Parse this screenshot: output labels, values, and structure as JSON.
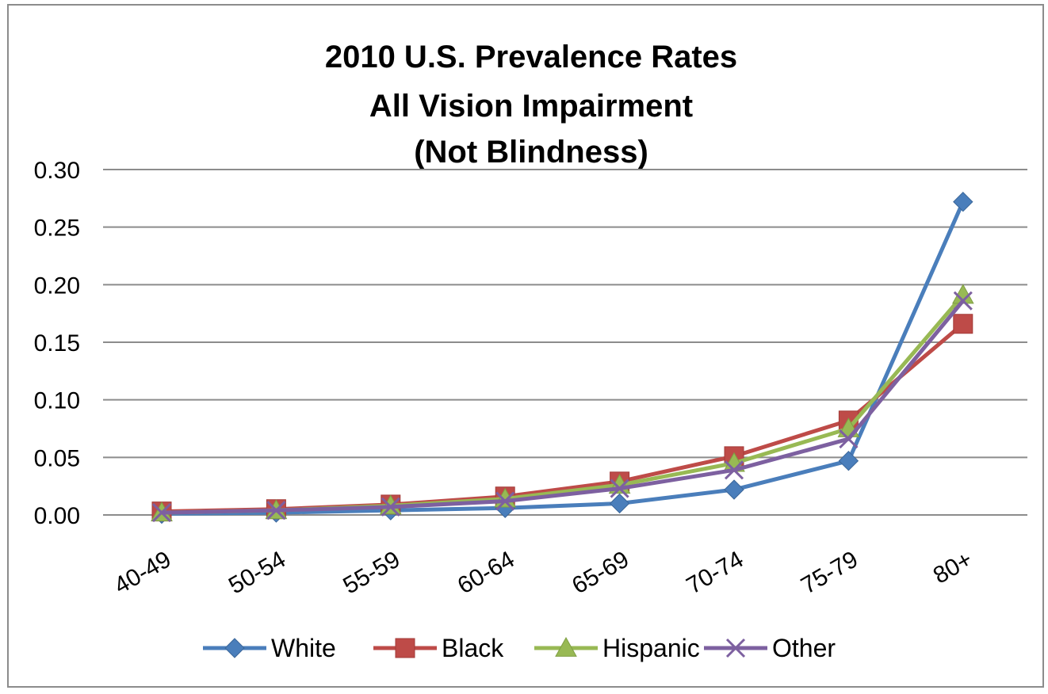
{
  "chart_data": {
    "type": "line",
    "title": [
      "2010 U.S. Prevalence Rates",
      "All Vision Impairment",
      "(Not Blindness)"
    ],
    "xlabel": "",
    "ylabel": "",
    "categories": [
      "40-49",
      "50-54",
      "55-59",
      "60-64",
      "65-69",
      "70-74",
      "75-79",
      "80+"
    ],
    "ylim": [
      0,
      0.3
    ],
    "yticks": [
      "0.00",
      "0.05",
      "0.10",
      "0.15",
      "0.20",
      "0.25",
      "0.30"
    ],
    "grid": true,
    "legend_position": "bottom",
    "series": [
      {
        "name": "White",
        "color": "#4a7ebb",
        "marker": "diamond",
        "values": [
          0.001,
          0.002,
          0.004,
          0.006,
          0.01,
          0.022,
          0.047,
          0.272
        ]
      },
      {
        "name": "Black",
        "color": "#be4b48",
        "marker": "square",
        "values": [
          0.003,
          0.005,
          0.009,
          0.016,
          0.029,
          0.051,
          0.082,
          0.166
        ]
      },
      {
        "name": "Hispanic",
        "color": "#98b954",
        "marker": "triangle",
        "values": [
          0.002,
          0.004,
          0.008,
          0.014,
          0.026,
          0.045,
          0.075,
          0.191
        ]
      },
      {
        "name": "Other",
        "color": "#7d60a0",
        "marker": "x",
        "values": [
          0.002,
          0.004,
          0.007,
          0.012,
          0.023,
          0.039,
          0.066,
          0.186
        ]
      }
    ]
  }
}
